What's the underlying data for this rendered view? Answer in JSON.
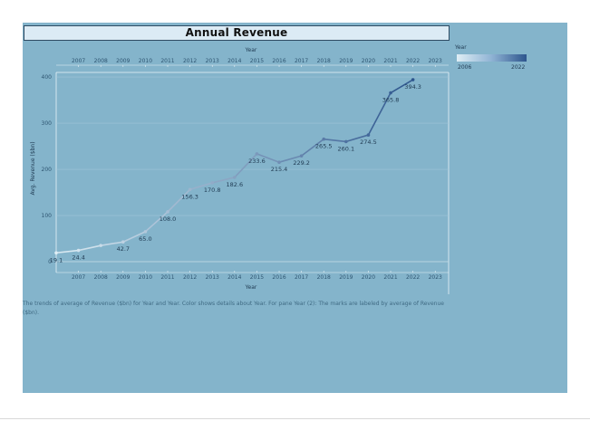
{
  "colors": {
    "panel": "#84b4cb",
    "series_light": "#dfeef5",
    "series_dark": "#2d558d"
  },
  "legend": {
    "title": "Year",
    "min_label": "2006",
    "max_label": "2022"
  },
  "caption": "The trends of average of Revenue ($bn) for Year and Year.  Color shows details about Year.  For pane Year (2):  The marks are labeled by average of Revenue ($bn).",
  "chart_data": {
    "type": "line",
    "title": "Annual Revenue",
    "xlabel": "Year",
    "ylabel": "Avg. Revenue ($bn)",
    "x_ticks": [
      "2007",
      "2008",
      "2009",
      "2010",
      "2011",
      "2012",
      "2013",
      "2014",
      "2015",
      "2016",
      "2017",
      "2018",
      "2019",
      "2020",
      "2021",
      "2022",
      "2023"
    ],
    "y_ticks": [
      "0",
      "100",
      "200",
      "300",
      "400"
    ],
    "xlim": [
      2006,
      2023.6
    ],
    "ylim": [
      0,
      410
    ],
    "x": [
      2006,
      2007,
      2008,
      2009,
      2010,
      2011,
      2012,
      2013,
      2014,
      2015,
      2016,
      2017,
      2018,
      2019,
      2020,
      2021,
      2022
    ],
    "values": [
      19.1,
      24.4,
      35.0,
      42.7,
      65.0,
      108.0,
      156.3,
      170.8,
      182.6,
      233.6,
      215.4,
      229.2,
      265.5,
      260.1,
      274.5,
      365.8,
      394.3
    ],
    "data_labels": [
      "19.1",
      "24.4",
      "",
      "42.7",
      "65.0",
      "108.0",
      "156.3",
      "170.8",
      "182.6",
      "233.6",
      "215.4",
      "229.2",
      "265.5",
      "260.1",
      "274.5",
      "365.8",
      "394.3"
    ],
    "grid": true,
    "legend": "top-right"
  }
}
